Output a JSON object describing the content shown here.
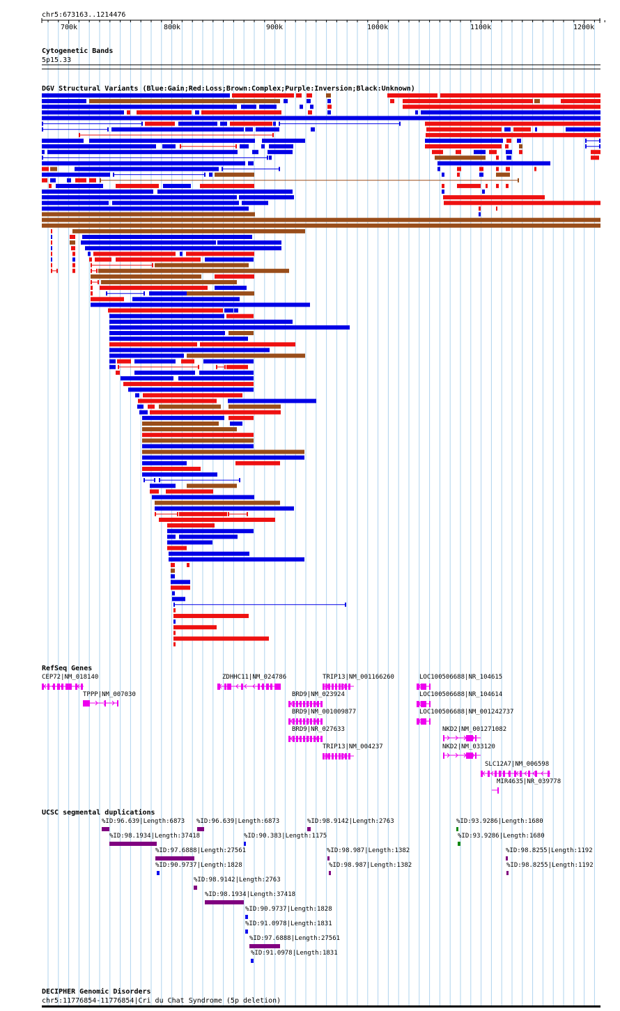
{
  "ruler": {
    "region": "chr5:673163..1214476",
    "ticks": [
      "700k",
      "800k",
      "900k",
      "1000k",
      "1100k",
      "1200k"
    ]
  },
  "tracks": {
    "cytoband": {
      "title": "Cytogenetic Bands",
      "band": "5p15.33"
    },
    "dgv": {
      "title": "DGV Structural Variants (Blue:Gain;Red:Loss;Brown:Complex;Purple:Inversion;Black:Unknown)"
    },
    "refseq": {
      "title": "RefSeq Genes"
    },
    "segdup": {
      "title": "UCSC segmental duplications"
    },
    "decipher": {
      "title": "DECIPHER Genomic Disorders",
      "feature": "chr5:11776854-11776854|Cri du Chat Syndrome (5p deletion)"
    }
  },
  "genes": [
    "CEP72|NM_018140",
    "TPPP|NM_007030",
    "ZDHHC11|NM_024786",
    "TRIP13|NM_001166260",
    "BRD9|NM_023924",
    "BRD9|NM_001009877",
    "BRD9|NR_027633",
    "TRIP13|NM_004237",
    "LOC100506688|NR_104615",
    "LOC100506688|NR_104614",
    "LOC100506688|NM_001242737",
    "NKD2|NM_001271082",
    "NKD2|NM_033120",
    "SLC12A7|NM_006598",
    "MIR4635|NR_039778"
  ],
  "segdups": [
    "%ID:96.639|Length:6873",
    "%ID:96.639|Length:6873",
    "%ID:98.9142|Length:2763",
    "%ID:93.9286|Length:1680",
    "%ID:98.1934|Length:37418",
    "%ID:90.383|Length:1175",
    "%ID:93.9286|Length:1680",
    "%ID:97.6888|Length:27561",
    "%ID:98.987|Length:1382",
    "%ID:98.8255|Length:1192",
    "%ID:90.9737|Length:1828",
    "%ID:98.987|Length:1382",
    "%ID:98.8255|Length:1192",
    "%ID:98.9142|Length:2763",
    "%ID:98.1934|Length:37418",
    "%ID:90.9737|Length:1828",
    "%ID:91.0978|Length:1831",
    "%ID:97.6888|Length:27561",
    "%ID:91.0978|Length:1831"
  ],
  "colors": {
    "gain": "#0000e6",
    "loss": "#ee1111",
    "complex": "#994d1a",
    "gene": "#ee00ee",
    "segdup_purple": "#800080",
    "segdup_blue": "#1010ee",
    "segdup_green": "#118811",
    "gridline": "#aed3ee"
  }
}
